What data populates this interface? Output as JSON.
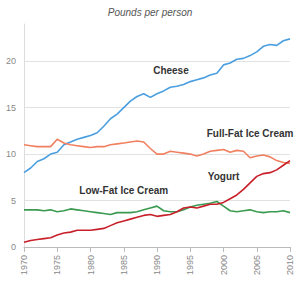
{
  "chart_data": {
    "type": "line",
    "title": "Pounds per person",
    "x": [
      1970,
      1971,
      1972,
      1973,
      1974,
      1975,
      1976,
      1977,
      1978,
      1979,
      1980,
      1981,
      1982,
      1983,
      1984,
      1985,
      1986,
      1987,
      1988,
      1989,
      1990,
      1991,
      1992,
      1993,
      1994,
      1995,
      1996,
      1997,
      1998,
      1999,
      2000,
      2001,
      2002,
      2003,
      2004,
      2005,
      2006,
      2007,
      2008,
      2009,
      2010
    ],
    "series": [
      {
        "name": "Cheese",
        "color": "#4a9fe0",
        "values": [
          8.0,
          8.5,
          9.2,
          9.5,
          10.0,
          10.2,
          11.0,
          11.3,
          11.6,
          11.8,
          12.0,
          12.3,
          13.0,
          13.8,
          14.3,
          15.0,
          15.7,
          16.2,
          16.5,
          16.1,
          16.5,
          16.8,
          17.2,
          17.3,
          17.5,
          17.8,
          18.0,
          18.2,
          18.5,
          18.7,
          19.6,
          19.8,
          20.2,
          20.3,
          20.6,
          21.0,
          21.6,
          21.8,
          21.7,
          22.2,
          22.4
        ]
      },
      {
        "name": "Full-Fat Ice Cream",
        "color": "#f08060",
        "values": [
          11.0,
          10.9,
          10.8,
          10.8,
          10.8,
          11.6,
          11.2,
          11.0,
          10.9,
          10.8,
          10.7,
          10.8,
          10.8,
          11.0,
          11.1,
          11.2,
          11.3,
          11.4,
          11.3,
          10.6,
          10.0,
          10.0,
          10.3,
          10.2,
          10.1,
          10.0,
          9.8,
          10.0,
          10.3,
          10.4,
          10.5,
          10.2,
          10.4,
          10.3,
          9.6,
          9.8,
          9.9,
          9.7,
          9.3,
          9.1,
          9.0
        ]
      },
      {
        "name": "Low-Fat Ice Cream",
        "color": "#3a9a50",
        "values": [
          4.0,
          4.0,
          4.0,
          3.9,
          4.0,
          3.8,
          3.9,
          4.1,
          4.0,
          3.9,
          3.8,
          3.7,
          3.6,
          3.5,
          3.7,
          3.7,
          3.7,
          3.8,
          4.0,
          4.2,
          4.4,
          3.9,
          3.8,
          3.8,
          4.0,
          4.3,
          4.5,
          4.6,
          4.7,
          4.9,
          4.4,
          3.9,
          3.8,
          3.9,
          4.0,
          3.8,
          3.7,
          3.8,
          3.8,
          3.9,
          3.7
        ]
      },
      {
        "name": "Yogurt",
        "color": "#c8202a",
        "values": [
          0.5,
          0.7,
          0.8,
          0.9,
          1.0,
          1.3,
          1.5,
          1.6,
          1.8,
          1.8,
          1.8,
          1.9,
          2.0,
          2.3,
          2.6,
          2.8,
          3.0,
          3.2,
          3.4,
          3.5,
          3.3,
          3.4,
          3.5,
          3.8,
          4.2,
          4.3,
          4.2,
          4.4,
          4.6,
          4.6,
          4.8,
          5.2,
          5.6,
          6.2,
          6.9,
          7.6,
          7.9,
          8.0,
          8.3,
          8.8,
          9.3
        ]
      }
    ],
    "xlim": [
      1970,
      2010
    ],
    "xticks": [
      1970,
      1975,
      1980,
      1985,
      1990,
      1995,
      2000,
      2005,
      2010
    ],
    "ylim": [
      0,
      24
    ],
    "yticks": [
      0,
      5,
      10,
      15,
      20
    ],
    "grid": true
  }
}
